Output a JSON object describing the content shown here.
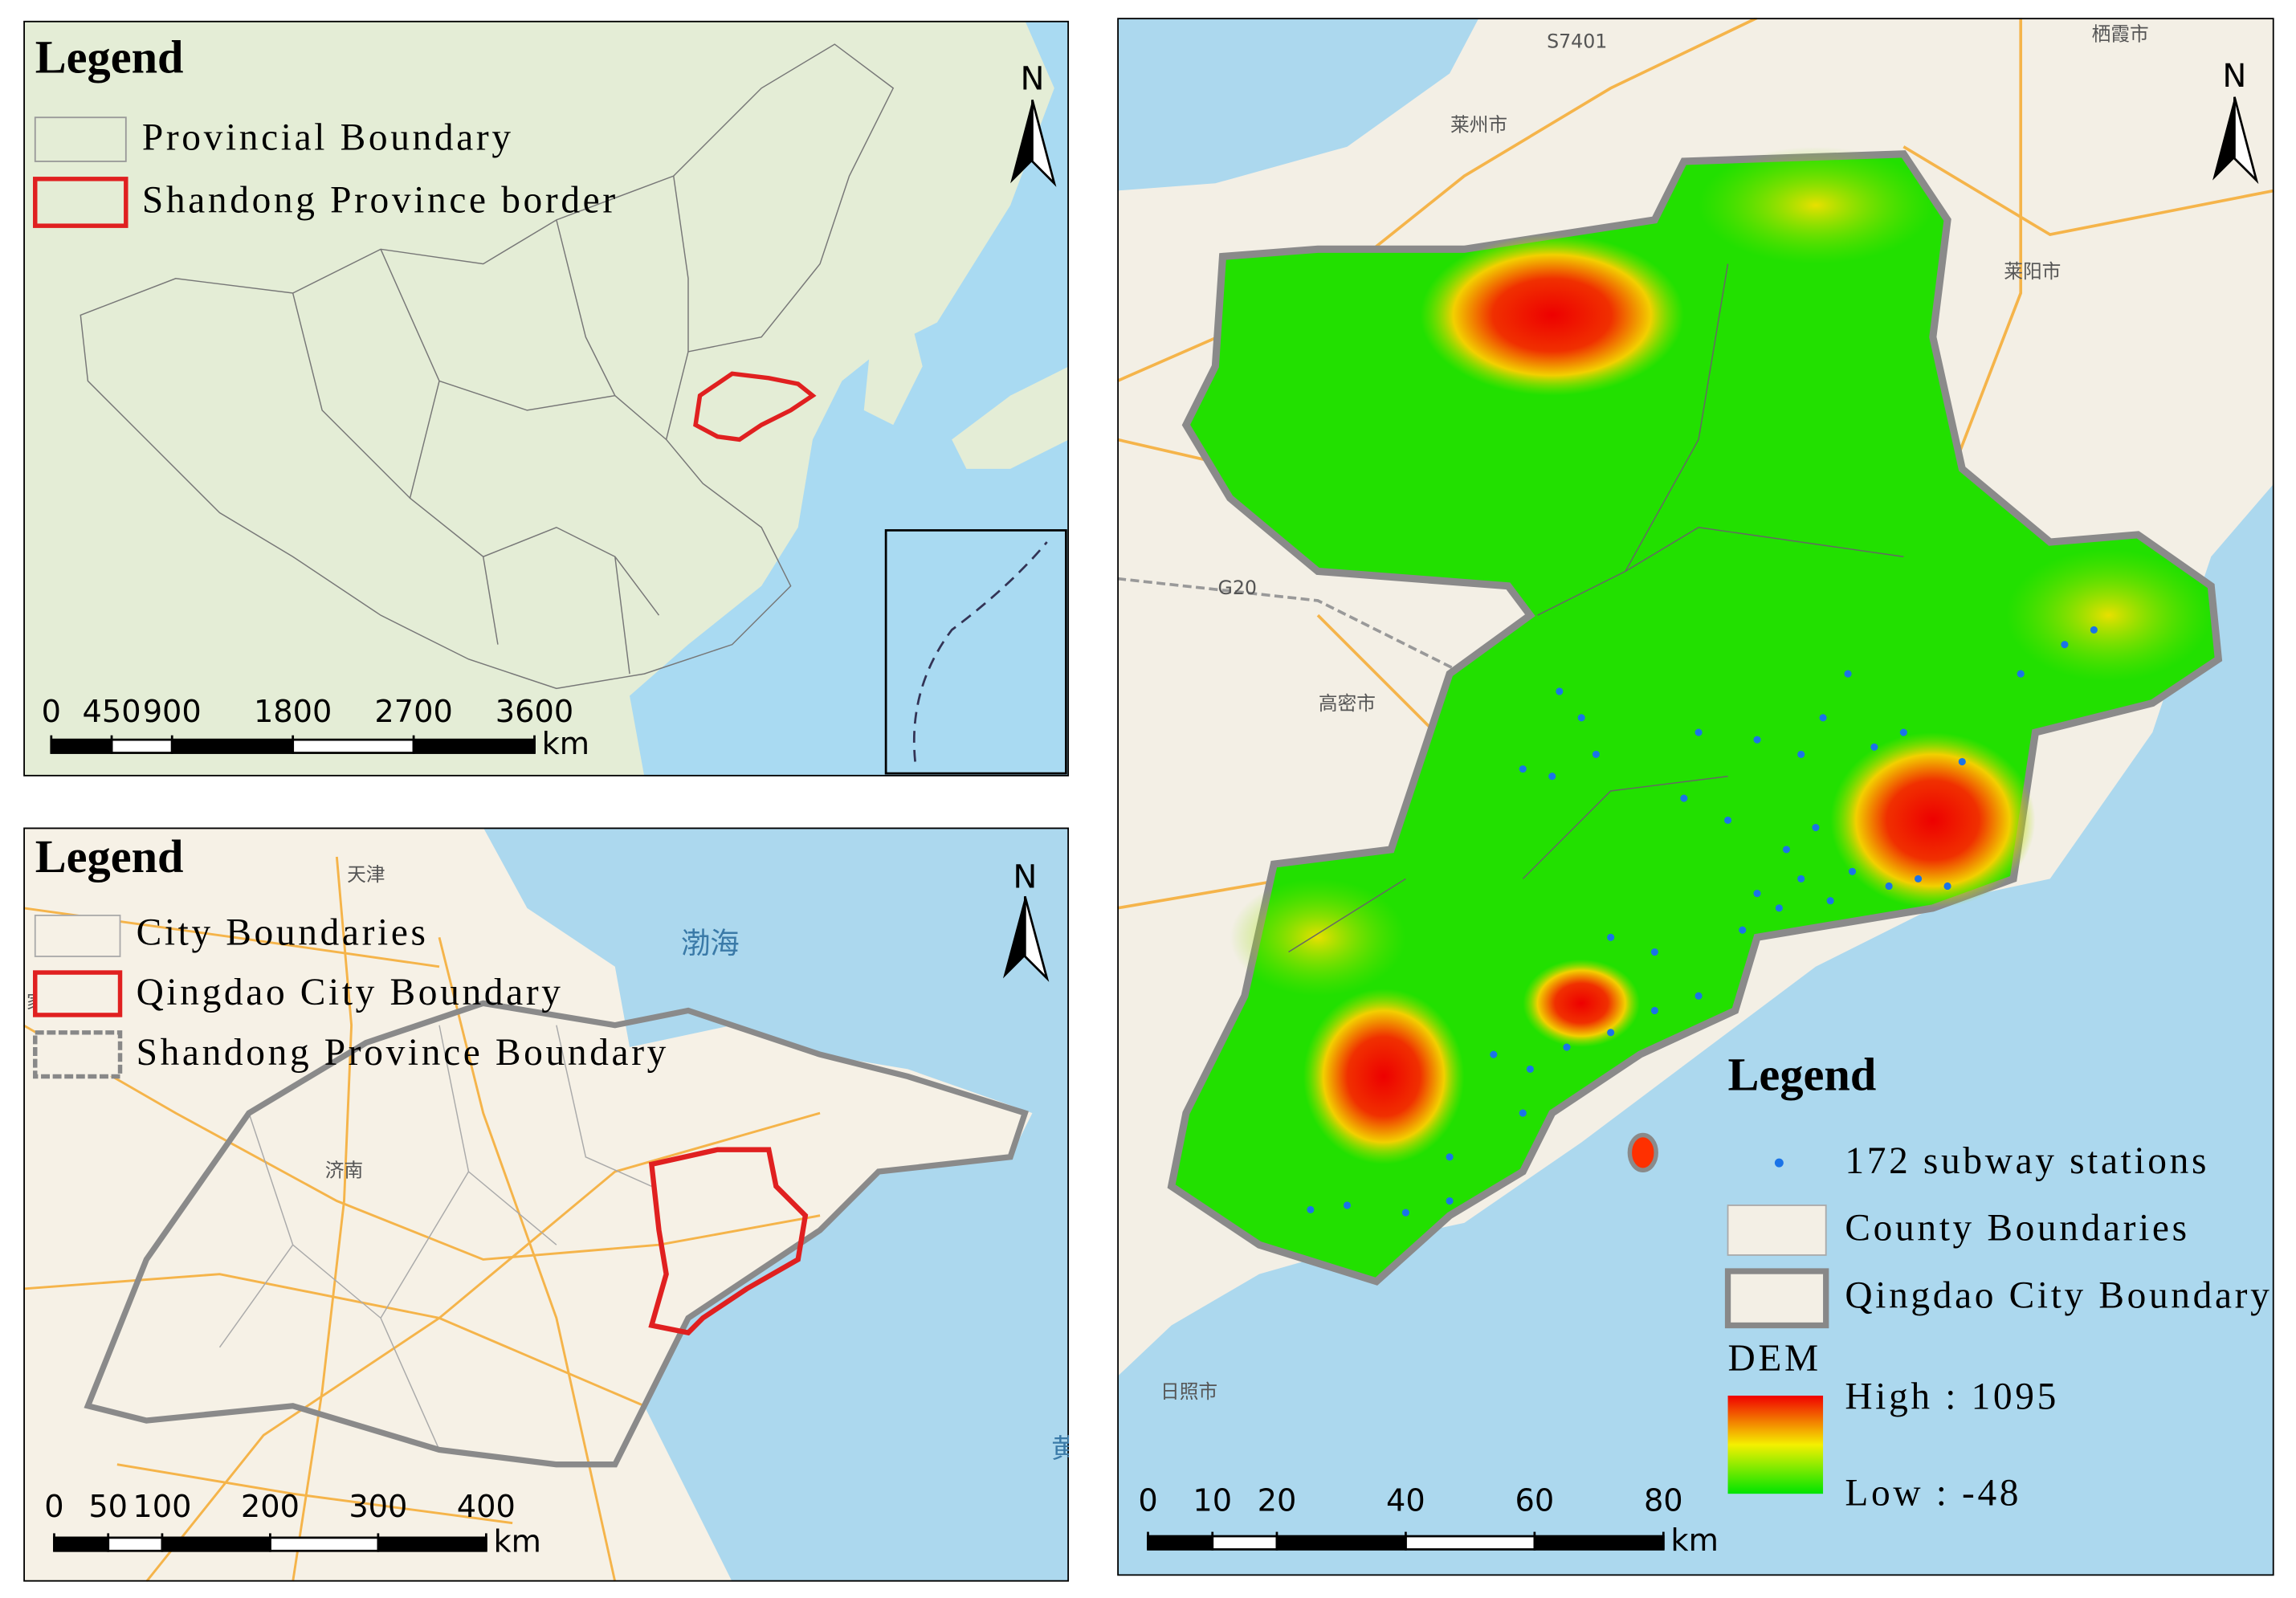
{
  "panels": [
    {
      "legend": {
        "title": "Legend",
        "items": [
          "Provincial Boundary",
          "Shandong Province border"
        ]
      },
      "north": "N",
      "scale_bar": {
        "ticks": [
          0,
          450,
          900,
          1800,
          2700,
          3600
        ],
        "unit": "km"
      }
    },
    {
      "legend": {
        "title": "Legend",
        "items": [
          "City Boundaries",
          "Qingdao City Boundary",
          "Shandong Province Boundary"
        ]
      },
      "north": "N",
      "map_labels": [
        "天津",
        "渤海",
        "济南",
        "家庄",
        "黄"
      ],
      "scale_bar": {
        "ticks": [
          0,
          50,
          100,
          200,
          300,
          400
        ],
        "unit": "km"
      }
    },
    {
      "legend": {
        "title": "Legend",
        "items": [
          "172 subway stations",
          "County Boundaries",
          "Qingdao City Boundary"
        ],
        "dem_title": "DEM",
        "dem_high": "High : 1095",
        "dem_low": "Low : -48"
      },
      "north": "N",
      "map_labels": [
        "S7401",
        "栖霞市",
        "莱州市",
        "莱阳市",
        "G20",
        "高密市",
        "日照市"
      ],
      "scale_bar": {
        "ticks": [
          0,
          10,
          20,
          40,
          60,
          80
        ],
        "unit": "km"
      }
    }
  ]
}
